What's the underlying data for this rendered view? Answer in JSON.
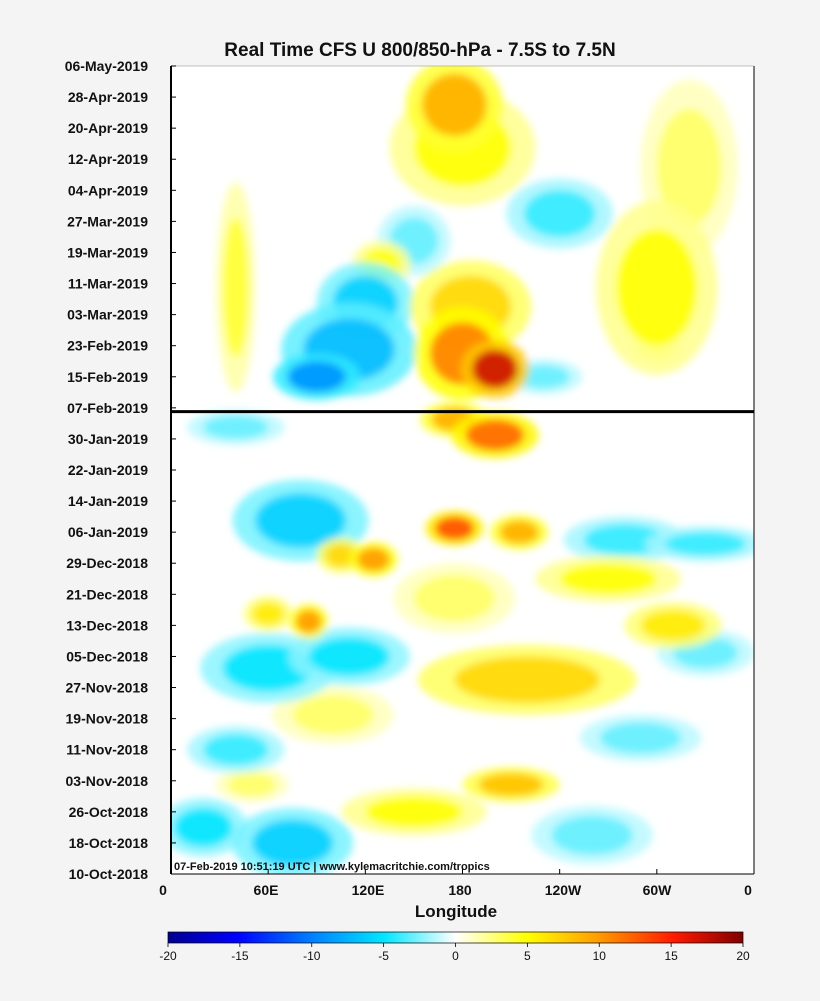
{
  "chart_data": {
    "type": "heatmap",
    "title": "Real Time CFS U 800/850-hPa - 7.5S to 7.5N",
    "xlabel": "Longitude",
    "ylabel": "",
    "x_ticks": [
      "0",
      "60E",
      "120E",
      "180",
      "120W",
      "60W",
      "0"
    ],
    "y_ticks": [
      "06-May-2019",
      "28-Apr-2019",
      "20-Apr-2019",
      "12-Apr-2019",
      "04-Apr-2019",
      "27-Mar-2019",
      "19-Mar-2019",
      "11-Mar-2019",
      "03-Mar-2019",
      "23-Feb-2019",
      "15-Feb-2019",
      "07-Feb-2019",
      "30-Jan-2019",
      "22-Jan-2019",
      "14-Jan-2019",
      "06-Jan-2019",
      "29-Dec-2018",
      "21-Dec-2018",
      "13-Dec-2018",
      "05-Dec-2018",
      "27-Nov-2018",
      "19-Nov-2018",
      "11-Nov-2018",
      "03-Nov-2018",
      "26-Oct-2018",
      "18-Oct-2018",
      "10-Oct-2018"
    ],
    "forecast_start": "07-Feb-2019",
    "colorbar": {
      "ticks": [
        "-20",
        "-15",
        "-10",
        "-5",
        "0",
        "5",
        "10",
        "15",
        "20"
      ],
      "min": -20,
      "max": 20
    },
    "annotation": "07-Feb-2019 10:51:19 UTC | www.kylemacritchie.com/tropics",
    "blobs": [
      {
        "lon": 200,
        "date": "2019-02-17",
        "value": 17,
        "lon_width": 14,
        "days": 5
      },
      {
        "lon": 180,
        "date": "2019-02-21",
        "value": 11,
        "lon_width": 20,
        "days": 8
      },
      {
        "lon": 185,
        "date": "2019-03-05",
        "value": 7,
        "lon_width": 25,
        "days": 8
      },
      {
        "lon": 175,
        "date": "2019-04-26",
        "value": 9,
        "lon_width": 20,
        "days": 8
      },
      {
        "lon": 180,
        "date": "2019-04-15",
        "value": 5,
        "lon_width": 30,
        "days": 10
      },
      {
        "lon": 130,
        "date": "2019-03-16",
        "value": 5,
        "lon_width": 12,
        "days": 4
      },
      {
        "lon": 300,
        "date": "2019-03-10",
        "value": 5,
        "lon_width": 25,
        "days": 15
      },
      {
        "lon": 320,
        "date": "2019-04-10",
        "value": 3,
        "lon_width": 20,
        "days": 15
      },
      {
        "lon": 300,
        "date": "2019-02-23",
        "value": 4,
        "lon_width": 10,
        "days": 3
      },
      {
        "lon": 40,
        "date": "2019-03-10",
        "value": 4,
        "lon_width": 8,
        "days": 18
      },
      {
        "lon": 110,
        "date": "2019-02-22",
        "value": -7,
        "lon_width": 28,
        "days": 8
      },
      {
        "lon": 90,
        "date": "2019-02-15",
        "value": -9,
        "lon_width": 18,
        "days": 4
      },
      {
        "lon": 120,
        "date": "2019-03-06",
        "value": -6,
        "lon_width": 20,
        "days": 7
      },
      {
        "lon": 240,
        "date": "2019-03-29",
        "value": -4,
        "lon_width": 22,
        "days": 6
      },
      {
        "lon": 150,
        "date": "2019-03-22",
        "value": -3,
        "lon_width": 15,
        "days": 6
      },
      {
        "lon": 230,
        "date": "2019-02-15",
        "value": -3,
        "lon_width": 16,
        "days": 3
      },
      {
        "lon": 200,
        "date": "2019-01-31",
        "value": 12,
        "lon_width": 18,
        "days": 4
      },
      {
        "lon": 175,
        "date": "2019-02-04",
        "value": 9,
        "lon_width": 14,
        "days": 3
      },
      {
        "lon": 175,
        "date": "2019-01-07",
        "value": 13,
        "lon_width": 12,
        "days": 3
      },
      {
        "lon": 215,
        "date": "2019-01-06",
        "value": 9,
        "lon_width": 12,
        "days": 3
      },
      {
        "lon": 125,
        "date": "2018-12-30",
        "value": 10,
        "lon_width": 10,
        "days": 3
      },
      {
        "lon": 105,
        "date": "2018-12-31",
        "value": 7,
        "lon_width": 10,
        "days": 3
      },
      {
        "lon": 85,
        "date": "2018-12-14",
        "value": 10,
        "lon_width": 8,
        "days": 3
      },
      {
        "lon": 60,
        "date": "2018-12-16",
        "value": 6,
        "lon_width": 10,
        "days": 3
      },
      {
        "lon": 220,
        "date": "2018-11-29",
        "value": 7,
        "lon_width": 45,
        "days": 6
      },
      {
        "lon": 210,
        "date": "2018-11-02",
        "value": 8,
        "lon_width": 20,
        "days": 3
      },
      {
        "lon": 150,
        "date": "2018-10-26",
        "value": 5,
        "lon_width": 30,
        "days": 4
      },
      {
        "lon": 100,
        "date": "2018-11-20",
        "value": 3,
        "lon_width": 25,
        "days": 5
      },
      {
        "lon": 270,
        "date": "2018-12-25",
        "value": 5,
        "lon_width": 30,
        "days": 4
      },
      {
        "lon": 310,
        "date": "2018-12-13",
        "value": 6,
        "lon_width": 20,
        "days": 4
      },
      {
        "lon": 175,
        "date": "2018-12-20",
        "value": 3,
        "lon_width": 25,
        "days": 6
      },
      {
        "lon": 50,
        "date": "2018-11-02",
        "value": 3,
        "lon_width": 15,
        "days": 3
      },
      {
        "lon": 80,
        "date": "2019-01-09",
        "value": -6,
        "lon_width": 28,
        "days": 7
      },
      {
        "lon": 60,
        "date": "2018-12-02",
        "value": -5,
        "lon_width": 28,
        "days": 6
      },
      {
        "lon": 110,
        "date": "2018-12-05",
        "value": -5,
        "lon_width": 25,
        "days": 5
      },
      {
        "lon": 20,
        "date": "2018-10-22",
        "value": -5,
        "lon_width": 18,
        "days": 5
      },
      {
        "lon": 75,
        "date": "2018-10-18",
        "value": -6,
        "lon_width": 25,
        "days": 6
      },
      {
        "lon": 40,
        "date": "2018-11-11",
        "value": -4,
        "lon_width": 20,
        "days": 4
      },
      {
        "lon": 280,
        "date": "2019-01-04",
        "value": -4,
        "lon_width": 25,
        "days": 4
      },
      {
        "lon": 330,
        "date": "2019-01-03",
        "value": -4,
        "lon_width": 25,
        "days": 3
      },
      {
        "lon": 290,
        "date": "2018-11-14",
        "value": -3,
        "lon_width": 25,
        "days": 4
      },
      {
        "lon": 260,
        "date": "2018-10-20",
        "value": -3,
        "lon_width": 25,
        "days": 5
      },
      {
        "lon": 40,
        "date": "2019-02-02",
        "value": -3,
        "lon_width": 20,
        "days": 3
      },
      {
        "lon": 330,
        "date": "2018-12-06",
        "value": -3,
        "lon_width": 20,
        "days": 4
      }
    ]
  }
}
